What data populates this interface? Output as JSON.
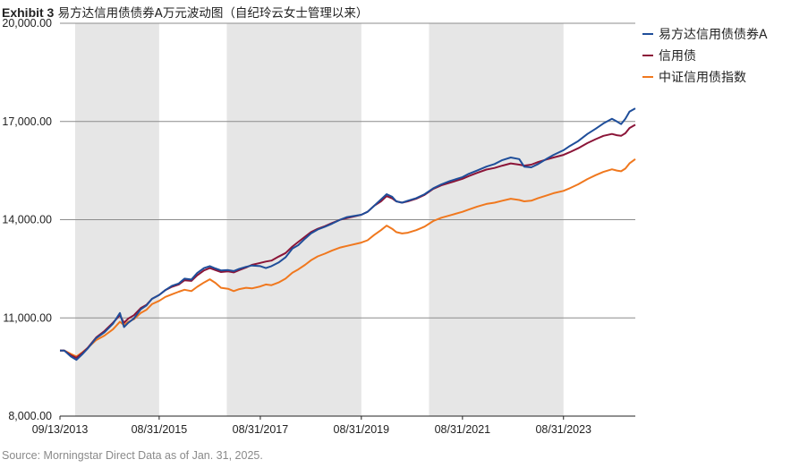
{
  "header": {
    "exhibit": "Exhibit 3",
    "title": "易方达信用债债券A万元波动图（自纪玲云女士管理以来）"
  },
  "footer": {
    "source": "Source: Morningstar Direct Data as of Jan. 31, 2025."
  },
  "chart_data": {
    "type": "line",
    "title": "易方达信用债债券A万元波动图（自纪玲云女士管理以来）",
    "ylim": [
      8000,
      20000
    ],
    "yticks": [
      "8,000.00",
      "11,000.00",
      "14,000.00",
      "17,000.00",
      "20,000.00"
    ],
    "ytick_values": [
      8000,
      11000,
      14000,
      17000,
      20000
    ],
    "xlim": [
      "2013-09-13",
      "2025-01-31"
    ],
    "xticks": [
      {
        "label": "09/13/2013",
        "date": "2013-09-13"
      },
      {
        "label": "08/31/2015",
        "date": "2015-08-31"
      },
      {
        "label": "08/31/2017",
        "date": "2017-08-31"
      },
      {
        "label": "08/31/2019",
        "date": "2019-08-31"
      },
      {
        "label": "08/31/2021",
        "date": "2021-08-31"
      },
      {
        "label": "08/31/2023",
        "date": "2023-08-31"
      }
    ],
    "shaded_bands": [
      [
        "2014-01-01",
        "2015-08-31"
      ],
      [
        "2017-01-01",
        "2019-08-31"
      ],
      [
        "2021-01-01",
        "2023-08-31"
      ]
    ],
    "grid": "horizontal",
    "legend_position": "right",
    "series": [
      {
        "name": "易方达信用债债券A",
        "color": "#1f4e9a",
        "points": [
          [
            "2013-09-13",
            10000
          ],
          [
            "2013-10-15",
            10000
          ],
          [
            "2013-12-01",
            9820
          ],
          [
            "2014-01-10",
            9720
          ],
          [
            "2014-02-20",
            9880
          ],
          [
            "2014-04-01",
            10060
          ],
          [
            "2014-06-01",
            10380
          ],
          [
            "2014-08-01",
            10560
          ],
          [
            "2014-10-01",
            10820
          ],
          [
            "2014-11-20",
            11150
          ],
          [
            "2014-12-20",
            10720
          ],
          [
            "2015-01-20",
            10850
          ],
          [
            "2015-03-01",
            10980
          ],
          [
            "2015-04-20",
            11260
          ],
          [
            "2015-06-01",
            11380
          ],
          [
            "2015-07-10",
            11580
          ],
          [
            "2015-08-31",
            11700
          ],
          [
            "2015-10-15",
            11850
          ],
          [
            "2015-12-01",
            11980
          ],
          [
            "2016-01-20",
            12050
          ],
          [
            "2016-03-01",
            12200
          ],
          [
            "2016-04-20",
            12170
          ],
          [
            "2016-06-01",
            12370
          ],
          [
            "2016-07-20",
            12520
          ],
          [
            "2016-08-31",
            12580
          ],
          [
            "2016-10-10",
            12510
          ],
          [
            "2016-11-20",
            12450
          ],
          [
            "2017-01-10",
            12460
          ],
          [
            "2017-02-20",
            12430
          ],
          [
            "2017-04-01",
            12500
          ],
          [
            "2017-05-20",
            12560
          ],
          [
            "2017-07-01",
            12600
          ],
          [
            "2017-08-31",
            12580
          ],
          [
            "2017-10-10",
            12520
          ],
          [
            "2017-11-20",
            12580
          ],
          [
            "2018-01-10",
            12690
          ],
          [
            "2018-03-01",
            12850
          ],
          [
            "2018-04-20",
            13120
          ],
          [
            "2018-06-01",
            13220
          ],
          [
            "2018-07-20",
            13420
          ],
          [
            "2018-09-01",
            13580
          ],
          [
            "2018-10-20",
            13700
          ],
          [
            "2018-12-10",
            13780
          ],
          [
            "2019-02-01",
            13880
          ],
          [
            "2019-04-01",
            14000
          ],
          [
            "2019-05-20",
            14080
          ],
          [
            "2019-08-31",
            14150
          ],
          [
            "2019-10-15",
            14240
          ],
          [
            "2019-12-01",
            14420
          ],
          [
            "2020-01-20",
            14620
          ],
          [
            "2020-03-01",
            14780
          ],
          [
            "2020-04-10",
            14700
          ],
          [
            "2020-05-10",
            14560
          ],
          [
            "2020-06-20",
            14520
          ],
          [
            "2020-08-01",
            14580
          ],
          [
            "2020-10-01",
            14660
          ],
          [
            "2020-12-01",
            14780
          ],
          [
            "2021-02-01",
            14960
          ],
          [
            "2021-04-01",
            15080
          ],
          [
            "2021-06-01",
            15180
          ],
          [
            "2021-08-31",
            15300
          ],
          [
            "2021-10-15",
            15400
          ],
          [
            "2021-12-15",
            15500
          ],
          [
            "2022-02-20",
            15620
          ],
          [
            "2022-04-20",
            15700
          ],
          [
            "2022-06-15",
            15820
          ],
          [
            "2022-08-15",
            15900
          ],
          [
            "2022-10-15",
            15850
          ],
          [
            "2022-11-20",
            15620
          ],
          [
            "2023-01-10",
            15600
          ],
          [
            "2023-03-01",
            15700
          ],
          [
            "2023-05-01",
            15860
          ],
          [
            "2023-06-20",
            15980
          ],
          [
            "2023-08-31",
            16120
          ],
          [
            "2023-10-15",
            16250
          ],
          [
            "2023-12-15",
            16400
          ],
          [
            "2024-02-20",
            16620
          ],
          [
            "2024-04-20",
            16780
          ],
          [
            "2024-06-15",
            16940
          ],
          [
            "2024-08-15",
            17080
          ],
          [
            "2024-09-20",
            17000
          ],
          [
            "2024-10-20",
            16920
          ],
          [
            "2024-11-20",
            17080
          ],
          [
            "2024-12-20",
            17300
          ],
          [
            "2025-01-31",
            17400
          ]
        ]
      },
      {
        "name": "信用债",
        "color": "#8b1538",
        "points": [
          [
            "2013-09-13",
            10000
          ],
          [
            "2013-10-15",
            10000
          ],
          [
            "2013-12-01",
            9860
          ],
          [
            "2014-01-10",
            9780
          ],
          [
            "2014-02-20",
            9920
          ],
          [
            "2014-04-01",
            10080
          ],
          [
            "2014-06-01",
            10400
          ],
          [
            "2014-08-01",
            10600
          ],
          [
            "2014-10-01",
            10850
          ],
          [
            "2014-11-20",
            11080
          ],
          [
            "2014-12-20",
            10850
          ],
          [
            "2015-01-20",
            10980
          ],
          [
            "2015-03-01",
            11080
          ],
          [
            "2015-04-20",
            11300
          ],
          [
            "2015-06-01",
            11400
          ],
          [
            "2015-07-10",
            11580
          ],
          [
            "2015-08-31",
            11700
          ],
          [
            "2015-10-15",
            11850
          ],
          [
            "2015-12-01",
            11950
          ],
          [
            "2016-01-20",
            12020
          ],
          [
            "2016-03-01",
            12150
          ],
          [
            "2016-04-20",
            12130
          ],
          [
            "2016-06-01",
            12300
          ],
          [
            "2016-07-20",
            12450
          ],
          [
            "2016-08-31",
            12520
          ],
          [
            "2016-10-10",
            12460
          ],
          [
            "2016-11-20",
            12400
          ],
          [
            "2017-01-10",
            12420
          ],
          [
            "2017-02-20",
            12390
          ],
          [
            "2017-04-01",
            12460
          ],
          [
            "2017-05-20",
            12540
          ],
          [
            "2017-07-01",
            12620
          ],
          [
            "2017-08-31",
            12680
          ],
          [
            "2017-10-10",
            12720
          ],
          [
            "2017-11-20",
            12750
          ],
          [
            "2018-01-10",
            12870
          ],
          [
            "2018-03-01",
            12980
          ],
          [
            "2018-04-20",
            13180
          ],
          [
            "2018-06-01",
            13320
          ],
          [
            "2018-07-20",
            13480
          ],
          [
            "2018-09-01",
            13620
          ],
          [
            "2018-10-20",
            13720
          ],
          [
            "2018-12-10",
            13800
          ],
          [
            "2019-02-01",
            13900
          ],
          [
            "2019-04-01",
            14000
          ],
          [
            "2019-05-20",
            14050
          ],
          [
            "2019-08-31",
            14150
          ],
          [
            "2019-10-15",
            14240
          ],
          [
            "2019-12-01",
            14420
          ],
          [
            "2020-01-20",
            14560
          ],
          [
            "2020-03-01",
            14720
          ],
          [
            "2020-04-10",
            14650
          ],
          [
            "2020-05-10",
            14560
          ],
          [
            "2020-06-20",
            14520
          ],
          [
            "2020-08-01",
            14560
          ],
          [
            "2020-10-01",
            14640
          ],
          [
            "2020-12-01",
            14760
          ],
          [
            "2021-02-01",
            14940
          ],
          [
            "2021-04-01",
            15050
          ],
          [
            "2021-06-01",
            15130
          ],
          [
            "2021-08-31",
            15250
          ],
          [
            "2021-10-15",
            15330
          ],
          [
            "2021-12-15",
            15430
          ],
          [
            "2022-02-20",
            15530
          ],
          [
            "2022-04-20",
            15580
          ],
          [
            "2022-06-15",
            15650
          ],
          [
            "2022-08-15",
            15720
          ],
          [
            "2022-10-15",
            15680
          ],
          [
            "2022-11-20",
            15650
          ],
          [
            "2023-01-10",
            15680
          ],
          [
            "2023-03-01",
            15760
          ],
          [
            "2023-05-01",
            15840
          ],
          [
            "2023-06-20",
            15900
          ],
          [
            "2023-08-31",
            15980
          ],
          [
            "2023-10-15",
            16060
          ],
          [
            "2023-12-15",
            16180
          ],
          [
            "2024-02-20",
            16340
          ],
          [
            "2024-04-20",
            16460
          ],
          [
            "2024-06-15",
            16560
          ],
          [
            "2024-08-15",
            16620
          ],
          [
            "2024-09-20",
            16580
          ],
          [
            "2024-10-20",
            16560
          ],
          [
            "2024-11-20",
            16640
          ],
          [
            "2024-12-20",
            16800
          ],
          [
            "2025-01-31",
            16900
          ]
        ]
      },
      {
        "name": "中证信用债指数",
        "color": "#f0781e",
        "points": [
          [
            "2013-09-13",
            10000
          ],
          [
            "2013-10-15",
            10000
          ],
          [
            "2013-12-01",
            9900
          ],
          [
            "2014-01-10",
            9820
          ],
          [
            "2014-02-20",
            9940
          ],
          [
            "2014-04-01",
            10080
          ],
          [
            "2014-06-01",
            10320
          ],
          [
            "2014-08-01",
            10460
          ],
          [
            "2014-10-01",
            10650
          ],
          [
            "2014-11-20",
            10880
          ],
          [
            "2014-12-20",
            10780
          ],
          [
            "2015-01-20",
            10880
          ],
          [
            "2015-03-01",
            10960
          ],
          [
            "2015-04-20",
            11150
          ],
          [
            "2015-06-01",
            11250
          ],
          [
            "2015-07-10",
            11420
          ],
          [
            "2015-08-31",
            11520
          ],
          [
            "2015-10-15",
            11640
          ],
          [
            "2015-12-01",
            11720
          ],
          [
            "2016-01-20",
            11800
          ],
          [
            "2016-03-01",
            11860
          ],
          [
            "2016-04-20",
            11820
          ],
          [
            "2016-06-01",
            11950
          ],
          [
            "2016-07-20",
            12080
          ],
          [
            "2016-08-31",
            12180
          ],
          [
            "2016-10-10",
            12070
          ],
          [
            "2016-11-20",
            11920
          ],
          [
            "2017-01-10",
            11890
          ],
          [
            "2017-02-20",
            11820
          ],
          [
            "2017-04-01",
            11880
          ],
          [
            "2017-05-20",
            11920
          ],
          [
            "2017-07-01",
            11900
          ],
          [
            "2017-08-31",
            11960
          ],
          [
            "2017-10-10",
            12020
          ],
          [
            "2017-11-20",
            12000
          ],
          [
            "2018-01-10",
            12080
          ],
          [
            "2018-03-01",
            12200
          ],
          [
            "2018-04-20",
            12380
          ],
          [
            "2018-06-01",
            12480
          ],
          [
            "2018-07-20",
            12620
          ],
          [
            "2018-09-01",
            12760
          ],
          [
            "2018-10-20",
            12880
          ],
          [
            "2018-12-10",
            12960
          ],
          [
            "2019-02-01",
            13060
          ],
          [
            "2019-04-01",
            13150
          ],
          [
            "2019-05-20",
            13200
          ],
          [
            "2019-08-31",
            13300
          ],
          [
            "2019-10-15",
            13370
          ],
          [
            "2019-12-01",
            13530
          ],
          [
            "2020-01-20",
            13680
          ],
          [
            "2020-03-01",
            13820
          ],
          [
            "2020-04-10",
            13720
          ],
          [
            "2020-05-10",
            13620
          ],
          [
            "2020-06-20",
            13580
          ],
          [
            "2020-08-01",
            13600
          ],
          [
            "2020-10-01",
            13680
          ],
          [
            "2020-12-01",
            13790
          ],
          [
            "2021-02-01",
            13960
          ],
          [
            "2021-04-01",
            14060
          ],
          [
            "2021-06-01",
            14130
          ],
          [
            "2021-08-31",
            14240
          ],
          [
            "2021-10-15",
            14310
          ],
          [
            "2021-12-15",
            14400
          ],
          [
            "2022-02-20",
            14480
          ],
          [
            "2022-04-20",
            14520
          ],
          [
            "2022-06-15",
            14580
          ],
          [
            "2022-08-15",
            14640
          ],
          [
            "2022-10-15",
            14600
          ],
          [
            "2022-11-20",
            14560
          ],
          [
            "2023-01-10",
            14580
          ],
          [
            "2023-03-01",
            14660
          ],
          [
            "2023-05-01",
            14740
          ],
          [
            "2023-06-20",
            14810
          ],
          [
            "2023-08-31",
            14880
          ],
          [
            "2023-10-15",
            14960
          ],
          [
            "2023-12-15",
            15080
          ],
          [
            "2024-02-20",
            15240
          ],
          [
            "2024-04-20",
            15360
          ],
          [
            "2024-06-15",
            15460
          ],
          [
            "2024-08-15",
            15540
          ],
          [
            "2024-09-20",
            15500
          ],
          [
            "2024-10-20",
            15480
          ],
          [
            "2024-11-20",
            15560
          ],
          [
            "2024-12-20",
            15720
          ],
          [
            "2025-01-31",
            15850
          ]
        ]
      }
    ]
  }
}
